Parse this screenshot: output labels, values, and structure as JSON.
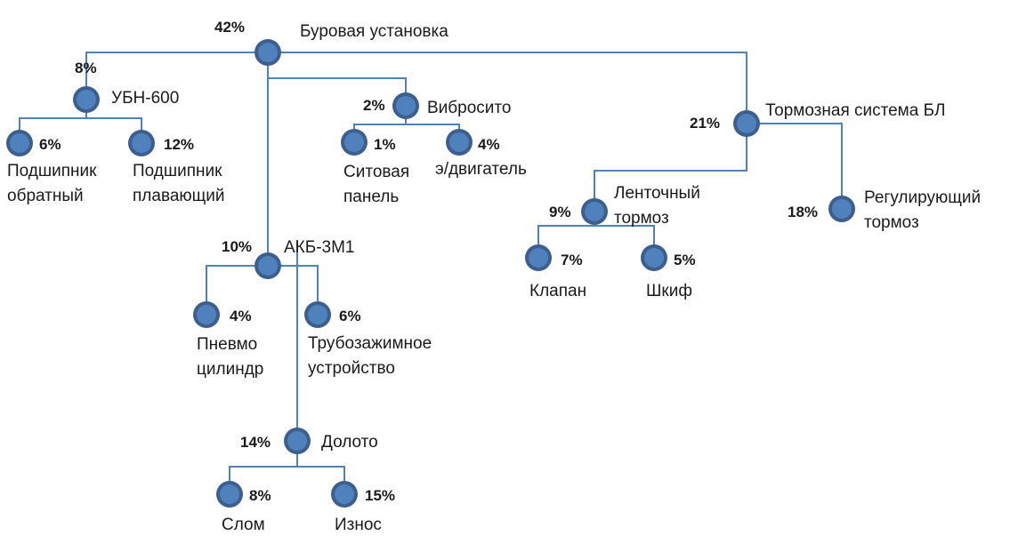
{
  "colors": {
    "edge": "#4f81bd",
    "node_fill": "#4f81bd",
    "node_ring": "#3d5f8f",
    "text": "#1a1a1a"
  },
  "nodes": {
    "root": {
      "pct": "42%",
      "label": [
        "Буровая установка"
      ]
    },
    "ubn": {
      "pct": "8%",
      "label": [
        "УБН-600"
      ]
    },
    "bear1": {
      "pct": "6%",
      "label": [
        "Подшипник",
        "обратный"
      ]
    },
    "bear2": {
      "pct": "12%",
      "label": [
        "Подшипник",
        "плавающий"
      ]
    },
    "vibro": {
      "pct": "2%",
      "label": [
        "Вибросито"
      ]
    },
    "sito": {
      "pct": "1%",
      "label": [
        "Ситовая",
        "панель"
      ]
    },
    "motor": {
      "pct": "4%",
      "label": [
        "э/двигатель"
      ]
    },
    "akb": {
      "pct": "10%",
      "label": [
        "АКБ-3М1"
      ]
    },
    "pnevmo": {
      "pct": "4%",
      "label": [
        "Пневмо",
        "цилиндр"
      ]
    },
    "truba": {
      "pct": "6%",
      "label": [
        "Трубозажимное",
        "устройство"
      ]
    },
    "doloto": {
      "pct": "14%",
      "label": [
        "Долото"
      ]
    },
    "slom": {
      "pct": "8%",
      "label": [
        "Слом"
      ]
    },
    "iznos": {
      "pct": "15%",
      "label": [
        "Износ"
      ]
    },
    "brake": {
      "pct": "21%",
      "label": [
        "Тормозная система БЛ"
      ]
    },
    "lent": {
      "pct": "9%",
      "label": [
        "Ленточный",
        "тормоз"
      ]
    },
    "klapan": {
      "pct": "7%",
      "label": [
        "Клапан"
      ]
    },
    "shkif": {
      "pct": "5%",
      "label": [
        "Шкиф"
      ]
    },
    "reg": {
      "pct": "18%",
      "label": [
        "Регулирующий",
        "тормоз"
      ]
    }
  },
  "edges": [
    [
      "root",
      "ubn"
    ],
    [
      "root",
      "vibro"
    ],
    [
      "root",
      "akb"
    ],
    [
      "root",
      "brake"
    ],
    [
      "ubn",
      "bear1"
    ],
    [
      "ubn",
      "bear2"
    ],
    [
      "vibro",
      "sito"
    ],
    [
      "vibro",
      "motor"
    ],
    [
      "akb",
      "pnevmo"
    ],
    [
      "akb",
      "truba"
    ],
    [
      "akb",
      "doloto"
    ],
    [
      "doloto",
      "slom"
    ],
    [
      "doloto",
      "iznos"
    ],
    [
      "brake",
      "lent"
    ],
    [
      "brake",
      "reg"
    ],
    [
      "lent",
      "klapan"
    ],
    [
      "lent",
      "shkif"
    ]
  ]
}
